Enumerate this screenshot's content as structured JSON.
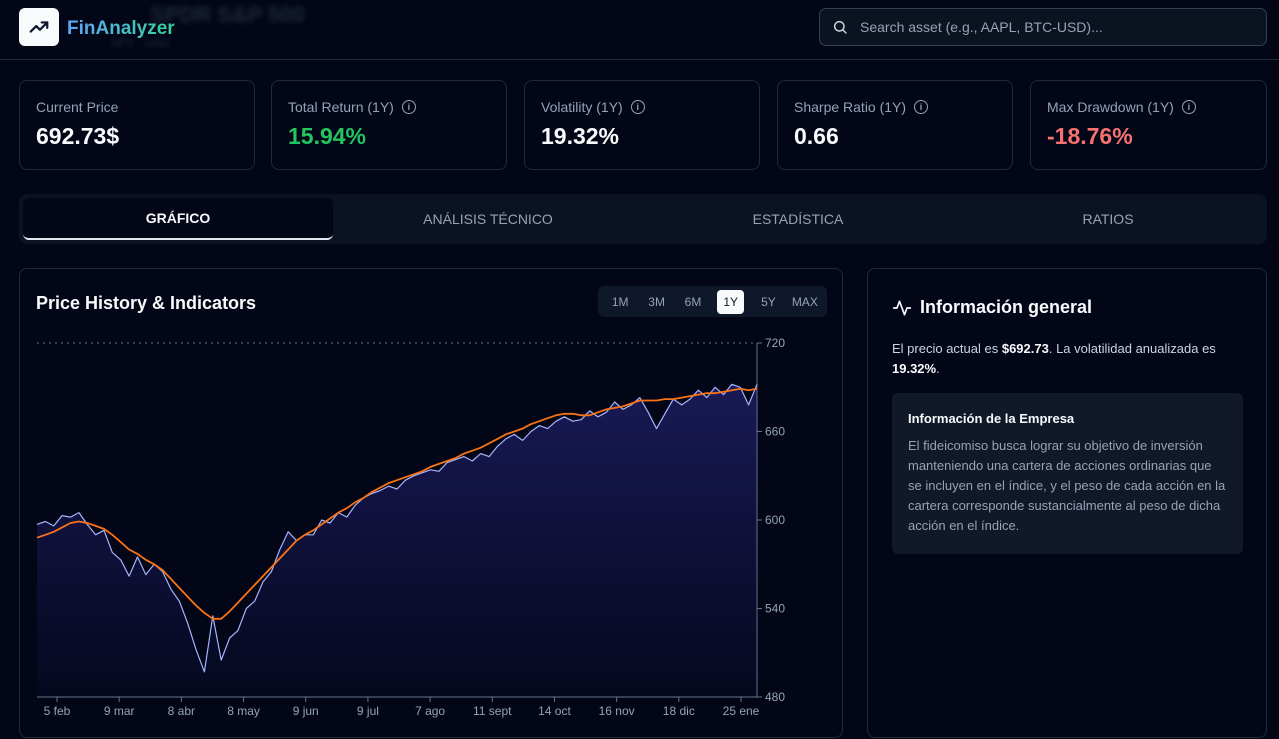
{
  "app": {
    "name": "FinAnalyzer",
    "ghost_title": "SPDR S&P 500",
    "ghost_subtitle": "SPY · USD",
    "search_placeholder": "Search asset (e.g., AAPL, BTC-USD)..."
  },
  "metrics": [
    {
      "label": "Current Price",
      "value": "692.73$",
      "color": "#f8fafc",
      "info": false
    },
    {
      "label": "Total Return (1Y)",
      "value": "15.94%",
      "color": "#22c55e",
      "info": true
    },
    {
      "label": "Volatility (1Y)",
      "value": "19.32%",
      "color": "#f8fafc",
      "info": true
    },
    {
      "label": "Sharpe Ratio (1Y)",
      "value": "0.66",
      "color": "#f8fafc",
      "info": true
    },
    {
      "label": "Max Drawdown (1Y)",
      "value": "-18.76%",
      "color": "#f87171",
      "info": true
    }
  ],
  "tabs": [
    "GRÁFICO",
    "ANÁLISIS TÉCNICO",
    "ESTADÍSTICA",
    "RATIOS"
  ],
  "active_tab": 0,
  "chart_card": {
    "title": "Price History & Indicators",
    "ranges": [
      "1M",
      "3M",
      "6M",
      "1Y",
      "5Y",
      "MAX"
    ],
    "active_range": "1Y"
  },
  "chart_data": {
    "type": "area",
    "title": "Price History & Indicators",
    "x_ticks": [
      "5 feb",
      "9 mar",
      "8 abr",
      "8 may",
      "9 jun",
      "9 jul",
      "7 ago",
      "11 sept",
      "14 oct",
      "16 nov",
      "18 dic",
      "25 ene"
    ],
    "y_ticks": [
      480,
      540,
      600,
      660,
      720
    ],
    "ylim": [
      480,
      720
    ],
    "series": [
      {
        "color": "#a5b4fc",
        "values": [
          597,
          599,
          596,
          603,
          602,
          605,
          597,
          590,
          593,
          578,
          573,
          562,
          575,
          563,
          570,
          565,
          553,
          545,
          530,
          512,
          497,
          535,
          505,
          520,
          525,
          540,
          545,
          558,
          565,
          580,
          592,
          586,
          590,
          590,
          600,
          598,
          605,
          602,
          610,
          615,
          618,
          620,
          623,
          621,
          627,
          630,
          632,
          634,
          633,
          639,
          641,
          643,
          640,
          645,
          643,
          650,
          655,
          658,
          654,
          660,
          664,
          662,
          667,
          670,
          667,
          668,
          674,
          670,
          673,
          680,
          675,
          678,
          683,
          673,
          662,
          672,
          682,
          678,
          682,
          688,
          683,
          690,
          685,
          692,
          690,
          678,
          692
        ]
      },
      {
        "color": "#f97316",
        "values": [
          588,
          590,
          592,
          595,
          598,
          599,
          598,
          596,
          594,
          590,
          585,
          580,
          577,
          573,
          570,
          566,
          560,
          554,
          548,
          542,
          537,
          533,
          533,
          538,
          544,
          550,
          556,
          562,
          568,
          574,
          580,
          586,
          590,
          593,
          597,
          601,
          605,
          608,
          612,
          615,
          619,
          622,
          625,
          627,
          629,
          631,
          633,
          636,
          638,
          640,
          642,
          645,
          647,
          649,
          652,
          655,
          658,
          660,
          662,
          665,
          667,
          669,
          671,
          672,
          672,
          671,
          671,
          673,
          675,
          676,
          677,
          679,
          681,
          681,
          681,
          682,
          682,
          683,
          684,
          685,
          686,
          686,
          687,
          688,
          689,
          688,
          689
        ]
      }
    ],
    "grid": false,
    "legend": "none"
  },
  "info": {
    "title": "Información general",
    "text_prefix": "El precio actual es ",
    "price": "$692.73",
    "text_middle": ". La volatilidad anualizada es ",
    "volatility": "19.32%",
    "text_suffix": ".",
    "company_title": "Información de la Empresa",
    "company_desc": "El fideicomiso busca lograr su objetivo de inversión manteniendo una cartera de acciones ordinarias que se incluyen en el índice, y el peso de cada acción en la cartera corresponde sustancialmente al peso de dicha acción en el índice."
  }
}
